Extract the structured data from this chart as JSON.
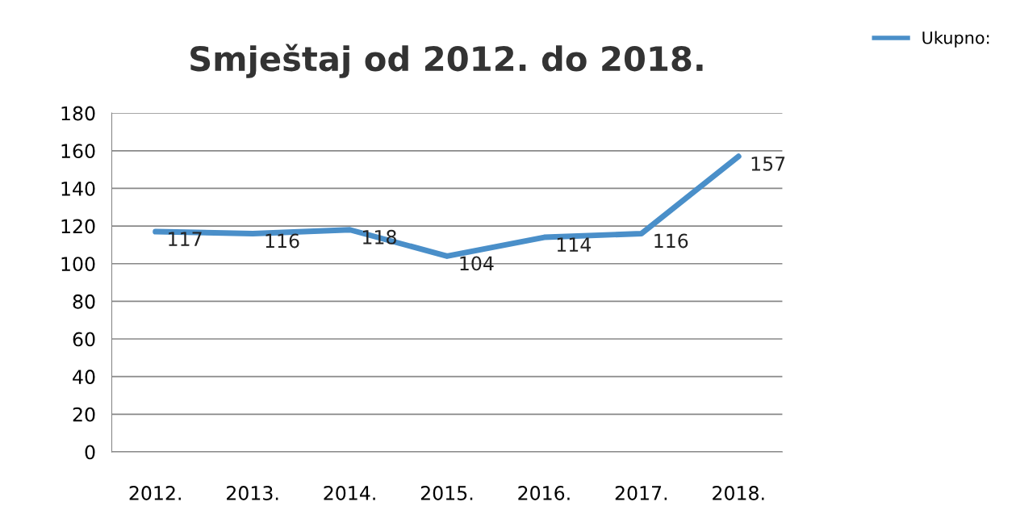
{
  "chart_data": {
    "type": "line",
    "title": "Smještaj od 2012. do 2018.",
    "categories": [
      "2012.",
      "2013.",
      "2014.",
      "2015.",
      "2016.",
      "2017.",
      "2018."
    ],
    "series": [
      {
        "name": "Ukupno:",
        "color": "#4a8fc9",
        "values": [
          117,
          116,
          118,
          104,
          114,
          116,
          157
        ]
      }
    ],
    "ylim": [
      0,
      180
    ],
    "yticks": [
      0,
      20,
      40,
      60,
      80,
      100,
      120,
      140,
      160,
      180
    ],
    "grid": "y",
    "legend": "top right",
    "data_labels": true,
    "marker": "none",
    "line_style": "solid"
  }
}
